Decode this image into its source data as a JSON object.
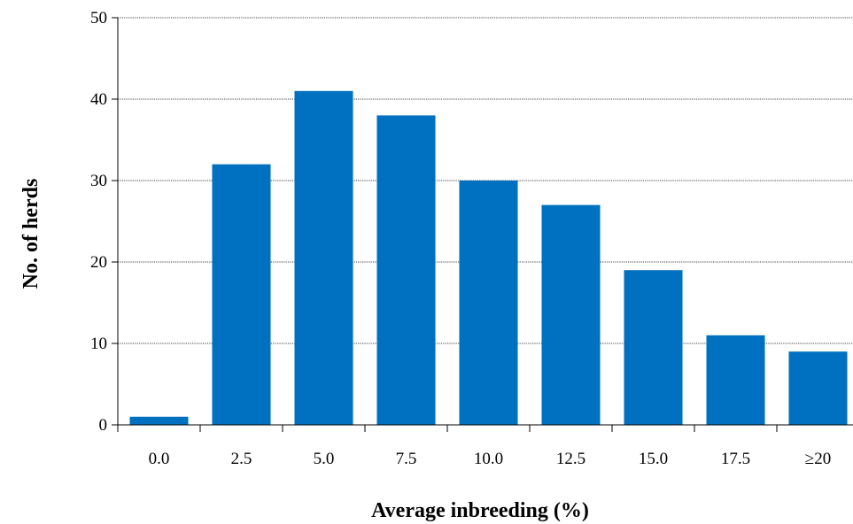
{
  "chart_data": {
    "type": "bar",
    "title": "",
    "xlabel": "Average inbreeding (%)",
    "ylabel": "No. of herds",
    "categories": [
      "0.0",
      "2.5",
      "5.0",
      "7.5",
      "10.0",
      "12.5",
      "15.0",
      "17.5",
      "≥20"
    ],
    "values": [
      1,
      32,
      41,
      38,
      30,
      27,
      19,
      11,
      9
    ],
    "ylim": [
      0,
      50
    ],
    "yticks": [
      "0",
      "10",
      "20",
      "30",
      "40",
      "50"
    ],
    "grid": true,
    "legend": "none",
    "colors": {
      "bar": "#0070C0",
      "grid": "#000000"
    }
  }
}
